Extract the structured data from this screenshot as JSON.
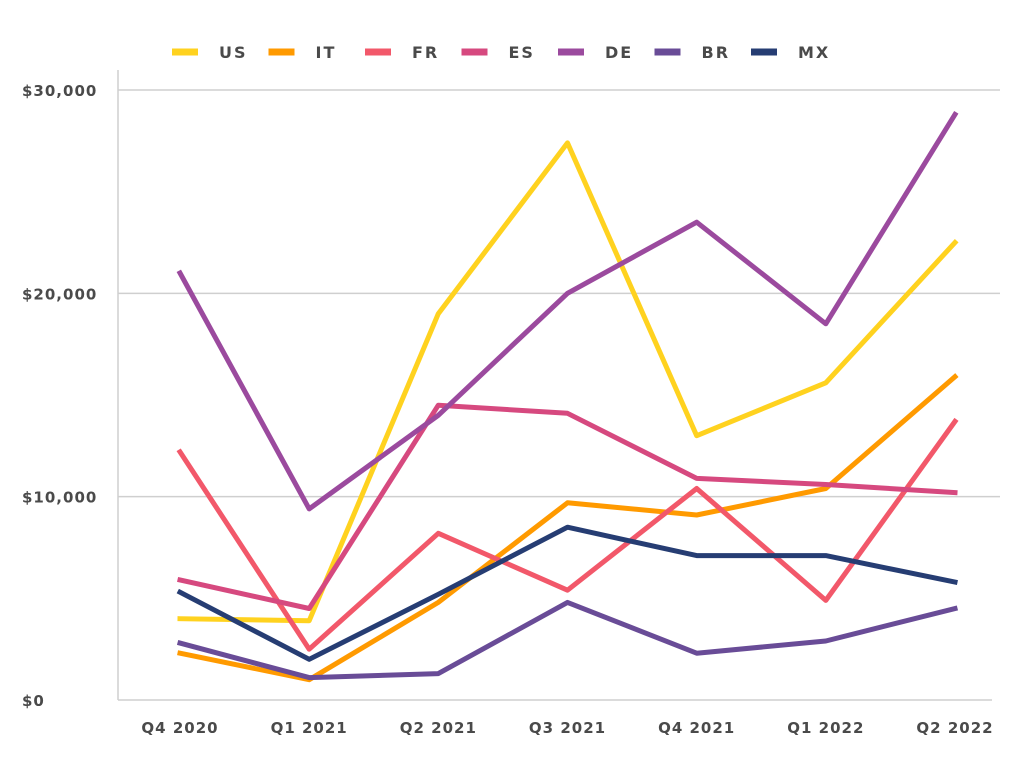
{
  "chart_data": {
    "type": "line",
    "title": "",
    "xlabel": "",
    "ylabel": "",
    "categories": [
      "Q4 2020",
      "Q1 2021",
      "Q2 2021",
      "Q3 2021",
      "Q4 2021",
      "Q1 2022",
      "Q2 2022"
    ],
    "y_ticks": [
      0,
      10000,
      20000,
      30000
    ],
    "y_tick_labels": [
      "$0",
      "$10,000",
      "$20,000",
      "$30,000"
    ],
    "ylim": [
      0,
      30000
    ],
    "grid": true,
    "legend_position": "top",
    "series": [
      {
        "name": "US",
        "color": "#FFD21F",
        "values": [
          4000,
          3900,
          19000,
          27400,
          13000,
          15600,
          22500
        ]
      },
      {
        "name": "IT",
        "color": "#FF9A00",
        "values": [
          2300,
          1000,
          4800,
          9700,
          9100,
          10400,
          15900
        ]
      },
      {
        "name": "FR",
        "color": "#F2586A",
        "values": [
          12200,
          2500,
          8200,
          5400,
          10400,
          4900,
          13700
        ]
      },
      {
        "name": "ES",
        "color": "#D6497F",
        "values": [
          5900,
          4500,
          14500,
          14100,
          10900,
          10600,
          10200
        ]
      },
      {
        "name": "DE",
        "color": "#9B4A9E",
        "values": [
          21000,
          9400,
          14000,
          20000,
          23500,
          18500,
          28800
        ]
      },
      {
        "name": "BR",
        "color": "#694C97",
        "values": [
          2800,
          1100,
          1300,
          4800,
          2300,
          2900,
          4500
        ]
      },
      {
        "name": "MX",
        "color": "#263D73",
        "values": [
          5300,
          2000,
          5200,
          8500,
          7100,
          7100,
          5800
        ]
      }
    ]
  }
}
